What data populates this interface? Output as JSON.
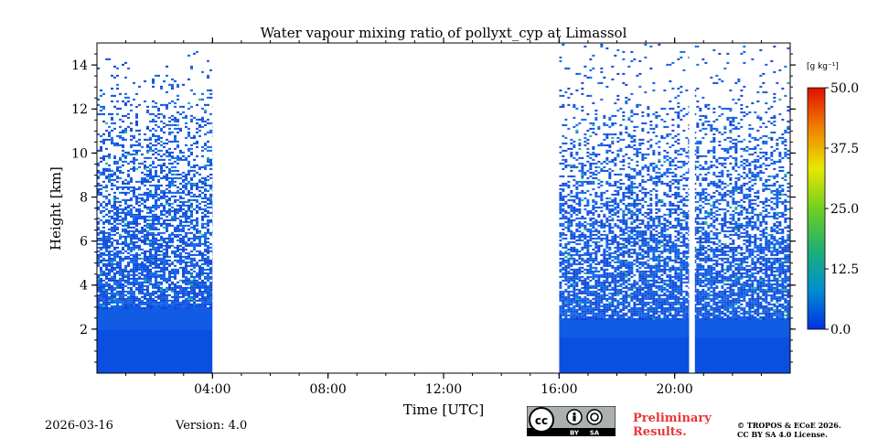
{
  "chart_data": {
    "type": "heatmap",
    "title": "Water vapour mixing ratio of pollyxt_cyp at Limassol",
    "xlabel": "Time [UTC]",
    "ylabel": "Height [km]",
    "xlim_hours": [
      0,
      24
    ],
    "ylim_km": [
      0,
      15
    ],
    "x_ticks": [
      {
        "hour": 4,
        "label": "04:00"
      },
      {
        "hour": 8,
        "label": "08:00"
      },
      {
        "hour": 12,
        "label": "12:00"
      },
      {
        "hour": 16,
        "label": "16:00"
      },
      {
        "hour": 20,
        "label": "20:00"
      }
    ],
    "y_ticks": [
      {
        "km": 2,
        "label": "2"
      },
      {
        "km": 4,
        "label": "4"
      },
      {
        "km": 6,
        "label": "6"
      },
      {
        "km": 8,
        "label": "8"
      },
      {
        "km": 10,
        "label": "10"
      },
      {
        "km": 12,
        "label": "12"
      },
      {
        "km": 14,
        "label": "14"
      }
    ],
    "data_segments": [
      {
        "start_hour": 0.0,
        "end_hour": 4.0,
        "dense_layer_top_km": 3.0,
        "max_signal_km": 14.8
      },
      {
        "start_hour": 16.0,
        "end_hour": 24.0,
        "dense_layer_top_km": 2.5,
        "max_signal_km": 15.0
      }
    ],
    "gaps": [
      {
        "start_hour": 4.0,
        "end_hour": 16.0
      },
      {
        "start_hour": 20.5,
        "end_hour": 20.7
      }
    ],
    "colorbar": {
      "unit_label": "[g kg⁻¹]",
      "min": 0.0,
      "max": 50.0,
      "tick_labels": [
        "0.0",
        "12.5",
        "25.0",
        "37.5",
        "50.0"
      ],
      "tick_values": [
        0.0,
        12.5,
        25.0,
        37.5,
        50.0
      ],
      "colors": [
        "#0030e0",
        "#0090d0",
        "#20b070",
        "#70d020",
        "#e8e800",
        "#f08000",
        "#e01000"
      ]
    },
    "dominant_value_color": "#0b4fe0"
  },
  "footer": {
    "date": "2026-03-16",
    "version": "Version: 4.0",
    "preliminary": "Preliminary",
    "results": "Results.",
    "copyright_1": "© TROPOS & ECoE 2026.",
    "copyright_2": "CC BY SA 4.0 License.",
    "cc_by": "BY",
    "cc_sa": "SA"
  }
}
